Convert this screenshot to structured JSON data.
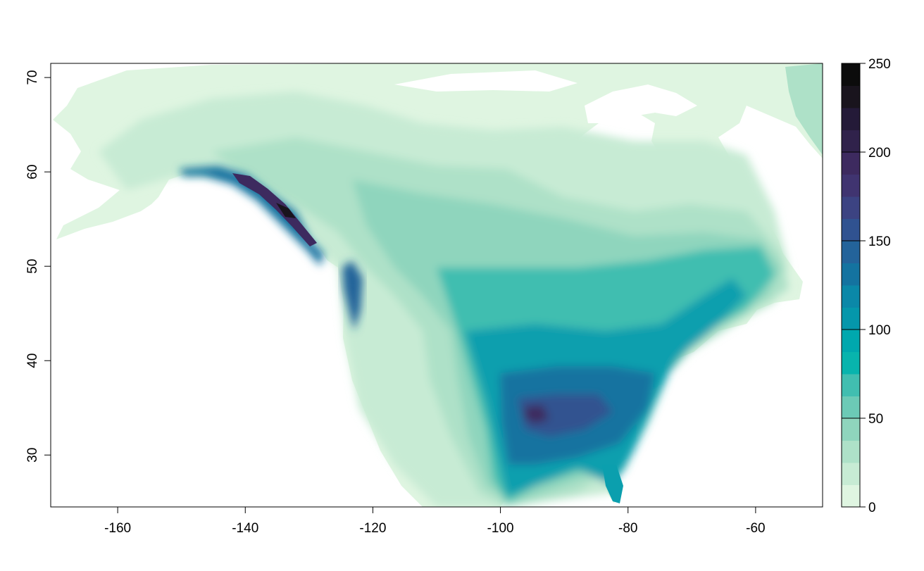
{
  "map": {
    "x_ticks": [
      "-160",
      "-140",
      "-120",
      "-100",
      "-80",
      "-60"
    ],
    "x_tick_values": [
      -160,
      -140,
      -120,
      -100,
      -80,
      -60
    ],
    "y_ticks": [
      "30",
      "40",
      "50",
      "60",
      "70"
    ],
    "y_tick_values": [
      30,
      40,
      50,
      60,
      70
    ],
    "lon_range": [
      -170.5,
      -49.5
    ],
    "lat_range": [
      24.5,
      71.5
    ]
  },
  "legend": {
    "ticks": [
      "0",
      "50",
      "100",
      "150",
      "200",
      "250"
    ],
    "tick_values": [
      0,
      50,
      100,
      150,
      200,
      250
    ],
    "range": [
      0,
      250
    ],
    "colors": [
      "#dff5e1",
      "#c7ebd4",
      "#aee1c8",
      "#8fd5bd",
      "#6ccab6",
      "#41beb0",
      "#08b4ad",
      "#00a8ae",
      "#0597ab",
      "#0b88a8",
      "#1473a0",
      "#23639a",
      "#305290",
      "#3c4382",
      "#403470",
      "#3d2a5f",
      "#30224b",
      "#241a38",
      "#19141d",
      "#0c0c0c"
    ]
  },
  "colors": {
    "background": "#ffffff",
    "frame": "#000000",
    "water": "#ffffff"
  }
}
